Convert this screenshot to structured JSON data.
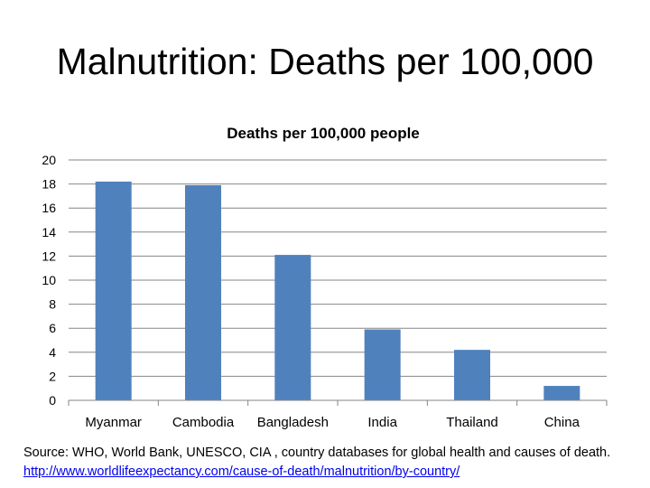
{
  "slide": {
    "title": "Malnutrition: Deaths per 100,000"
  },
  "chart_data": {
    "type": "bar",
    "title": "Deaths per 100,000 people",
    "categories": [
      "Myanmar",
      "Cambodia",
      "Bangladesh",
      "India",
      "Thailand",
      "China"
    ],
    "values": [
      18.2,
      17.9,
      12.1,
      5.9,
      4.2,
      1.2
    ],
    "ylim": [
      0,
      20
    ],
    "yticks": [
      "0",
      "2",
      "4",
      "6",
      "8",
      "10",
      "12",
      "14",
      "16",
      "18",
      "20"
    ],
    "grid": true,
    "bar_color": "#4f81bd",
    "grid_color": "#868686"
  },
  "source": {
    "text": "Source: WHO, World Bank, UNESCO, CIA , country databases for global health and causes of death. ",
    "link_text": "http://www.worldlifeexpectancy.com/cause-of-death/malnutrition/by-country/"
  }
}
